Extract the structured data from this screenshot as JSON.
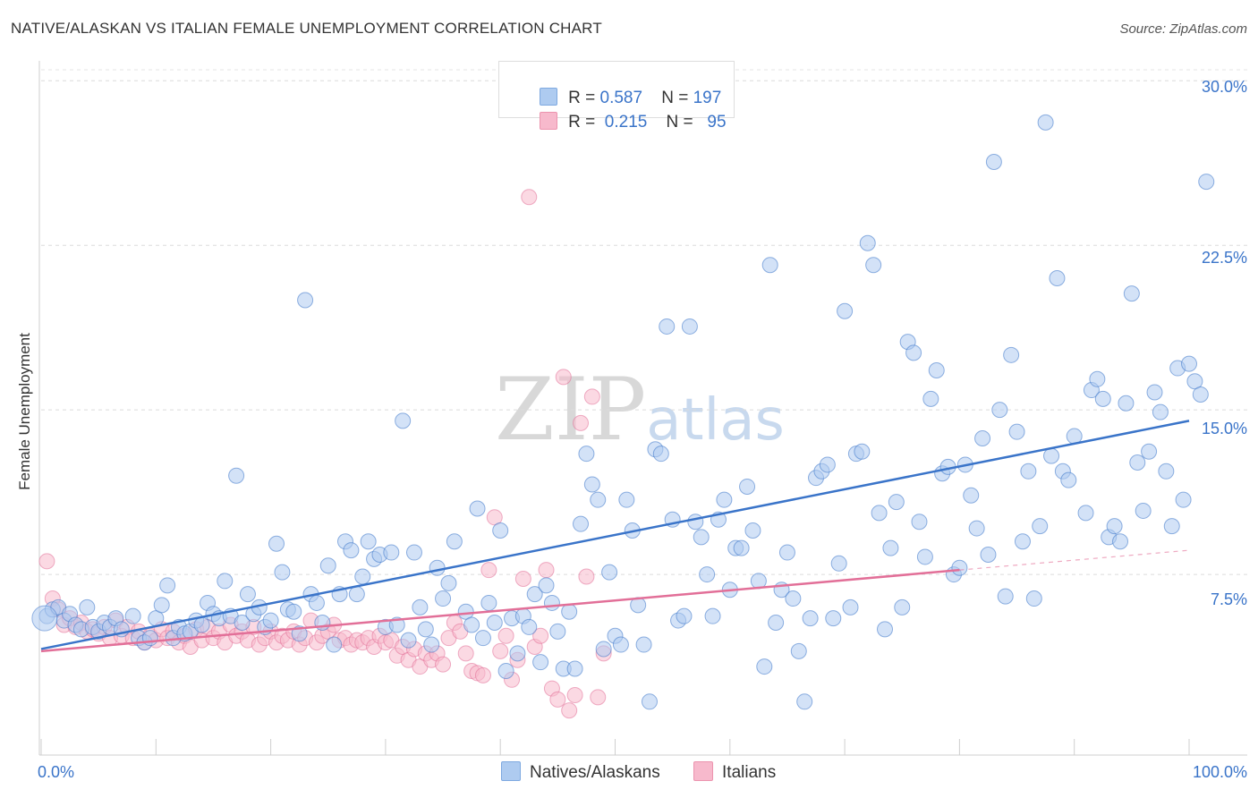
{
  "header": {
    "title": "NATIVE/ALASKAN VS ITALIAN FEMALE UNEMPLOYMENT CORRELATION CHART",
    "source": "Source: ZipAtlas.com"
  },
  "watermark": {
    "main": "ZIP",
    "sub": "atlas"
  },
  "legend_top": [
    {
      "r_label": "R =",
      "r_value": "0.587",
      "n_label": "N =",
      "n_value": "197",
      "color": "#aecbf0"
    },
    {
      "r_label": "R =",
      "r_value": "0.215",
      "n_label": "N =",
      "n_value": "95",
      "color": "#f7b9cc"
    }
  ],
  "legend_bottom": [
    {
      "label": "Natives/Alaskans",
      "color": "#aecbf0"
    },
    {
      "label": "Italians",
      "color": "#f7b9cc"
    }
  ],
  "chart_data": {
    "type": "scatter",
    "title": "NATIVE/ALASKAN VS ITALIAN FEMALE UNEMPLOYMENT CORRELATION CHART",
    "xlabel": "",
    "ylabel": "Female Unemployment",
    "xlim": [
      0,
      100
    ],
    "ylim": [
      0,
      30.5
    ],
    "x_tick_labels": [
      "0.0%",
      "100.0%"
    ],
    "y_ticks": [
      7.5,
      15.0,
      22.5,
      30.0
    ],
    "y_tick_labels": [
      "7.5%",
      "15.0%",
      "22.5%",
      "30.0%"
    ],
    "grid": true,
    "legend_placement": "top-center",
    "series": [
      {
        "name": "Natives/Alaskans",
        "color": "#3a74c9",
        "fill": "#aecbf0",
        "r": 0.587,
        "n": 197,
        "trend": {
          "x": [
            0,
            100
          ],
          "y": [
            4.1,
            14.5
          ]
        },
        "points": [
          [
            0.5,
            5.6
          ],
          [
            1,
            5.9
          ],
          [
            1.5,
            6
          ],
          [
            2,
            5.4
          ],
          [
            2.5,
            5.7
          ],
          [
            3,
            5.2
          ],
          [
            3.5,
            5
          ],
          [
            4,
            6
          ],
          [
            4.5,
            5.1
          ],
          [
            5,
            4.9
          ],
          [
            5.5,
            5.3
          ],
          [
            6,
            5.1
          ],
          [
            6.5,
            5.5
          ],
          [
            7,
            5
          ],
          [
            8,
            5.6
          ],
          [
            8.5,
            4.6
          ],
          [
            9,
            4.4
          ],
          [
            9.5,
            4.6
          ],
          [
            10,
            5.5
          ],
          [
            10.5,
            6.1
          ],
          [
            11,
            7
          ],
          [
            11.5,
            4.6
          ],
          [
            12,
            5.1
          ],
          [
            12.5,
            4.8
          ],
          [
            13,
            4.9
          ],
          [
            13.5,
            5.4
          ],
          [
            14,
            5.2
          ],
          [
            14.5,
            6.2
          ],
          [
            15,
            5.7
          ],
          [
            15.5,
            5.5
          ],
          [
            16,
            7.2
          ],
          [
            16.5,
            5.6
          ],
          [
            17,
            12
          ],
          [
            17.5,
            5.3
          ],
          [
            18,
            6.6
          ],
          [
            18.5,
            5.7
          ],
          [
            19,
            6
          ],
          [
            19.5,
            5.1
          ],
          [
            20,
            5.4
          ],
          [
            20.5,
            8.9
          ],
          [
            21,
            7.6
          ],
          [
            21.5,
            5.9
          ],
          [
            22,
            5.8
          ],
          [
            22.5,
            4.8
          ],
          [
            23,
            20
          ],
          [
            23.5,
            6.6
          ],
          [
            24,
            6.2
          ],
          [
            24.5,
            5.3
          ],
          [
            25,
            7.9
          ],
          [
            25.5,
            4.3
          ],
          [
            26,
            6.6
          ],
          [
            26.5,
            9
          ],
          [
            27,
            8.6
          ],
          [
            27.5,
            6.6
          ],
          [
            28,
            7.4
          ],
          [
            28.5,
            9
          ],
          [
            29,
            8.2
          ],
          [
            29.5,
            8.4
          ],
          [
            30,
            5.1
          ],
          [
            30.5,
            8.5
          ],
          [
            31,
            5.2
          ],
          [
            31.5,
            14.5
          ],
          [
            32,
            4.5
          ],
          [
            32.5,
            8.5
          ],
          [
            33,
            6
          ],
          [
            33.5,
            5
          ],
          [
            34,
            4.3
          ],
          [
            34.5,
            7.8
          ],
          [
            35,
            6.4
          ],
          [
            35.5,
            7.1
          ],
          [
            36,
            9
          ],
          [
            37,
            5.8
          ],
          [
            37.5,
            5.2
          ],
          [
            38,
            10.5
          ],
          [
            38.5,
            4.6
          ],
          [
            39,
            6.2
          ],
          [
            39.5,
            5.3
          ],
          [
            40,
            9.5
          ],
          [
            40.5,
            3.1
          ],
          [
            41,
            5.5
          ],
          [
            41.5,
            3.9
          ],
          [
            42,
            5.6
          ],
          [
            42.5,
            5.1
          ],
          [
            43,
            6.6
          ],
          [
            43.5,
            3.5
          ],
          [
            44,
            7
          ],
          [
            44.5,
            6.2
          ],
          [
            45,
            4.9
          ],
          [
            45.5,
            3.2
          ],
          [
            46,
            5.8
          ],
          [
            46.5,
            3.2
          ],
          [
            47,
            9.8
          ],
          [
            47.5,
            13
          ],
          [
            48,
            11.6
          ],
          [
            48.5,
            10.9
          ],
          [
            49,
            4.1
          ],
          [
            49.5,
            7.6
          ],
          [
            50,
            4.7
          ],
          [
            50.5,
            4.3
          ],
          [
            51,
            10.9
          ],
          [
            51.5,
            9.5
          ],
          [
            52,
            6.1
          ],
          [
            52.5,
            4.3
          ],
          [
            53,
            1.7
          ],
          [
            53.5,
            13.2
          ],
          [
            54,
            13
          ],
          [
            54.5,
            18.8
          ],
          [
            55,
            10
          ],
          [
            55.5,
            5.4
          ],
          [
            56,
            5.6
          ],
          [
            56.5,
            18.8
          ],
          [
            57,
            9.9
          ],
          [
            57.5,
            9.2
          ],
          [
            58,
            7.5
          ],
          [
            58.5,
            5.6
          ],
          [
            59,
            10
          ],
          [
            60,
            6.8
          ],
          [
            60.5,
            8.7
          ],
          [
            61,
            8.7
          ],
          [
            61.5,
            11.5
          ],
          [
            62,
            9.5
          ],
          [
            62.5,
            7.2
          ],
          [
            63,
            3.3
          ],
          [
            63.5,
            21.6
          ],
          [
            64,
            5.3
          ],
          [
            64.5,
            6.8
          ],
          [
            65,
            8.5
          ],
          [
            65.5,
            6.4
          ],
          [
            66,
            4
          ],
          [
            66.5,
            1.7
          ],
          [
            67,
            5.5
          ],
          [
            67.5,
            11.9
          ],
          [
            68,
            12.2
          ],
          [
            68.5,
            12.5
          ],
          [
            69,
            5.5
          ],
          [
            69.5,
            8
          ],
          [
            70,
            19.5
          ],
          [
            70.5,
            6
          ],
          [
            71,
            13
          ],
          [
            71.5,
            13.1
          ],
          [
            72,
            22.6
          ],
          [
            72.5,
            21.6
          ],
          [
            73,
            10.3
          ],
          [
            73.5,
            5
          ],
          [
            74,
            8.7
          ],
          [
            74.5,
            10.8
          ],
          [
            75,
            6
          ],
          [
            75.5,
            18.1
          ],
          [
            76,
            17.6
          ],
          [
            76.5,
            9.9
          ],
          [
            77,
            8.3
          ],
          [
            77.5,
            15.5
          ],
          [
            78,
            16.8
          ],
          [
            78.5,
            12.1
          ],
          [
            79,
            12.4
          ],
          [
            79.5,
            7.5
          ],
          [
            80,
            7.8
          ],
          [
            80.5,
            12.5
          ],
          [
            81,
            11.1
          ],
          [
            81.5,
            9.6
          ],
          [
            82,
            13.7
          ],
          [
            82.5,
            8.4
          ],
          [
            83,
            26.3
          ],
          [
            83.5,
            15
          ],
          [
            84,
            6.5
          ],
          [
            84.5,
            17.5
          ],
          [
            85,
            14
          ],
          [
            85.5,
            9
          ],
          [
            86,
            12.2
          ],
          [
            86.5,
            6.4
          ],
          [
            87,
            9.7
          ],
          [
            87.5,
            28.1
          ],
          [
            88,
            12.9
          ],
          [
            88.5,
            21
          ],
          [
            89,
            12.2
          ],
          [
            89.5,
            11.8
          ],
          [
            90,
            13.8
          ],
          [
            91,
            10.3
          ],
          [
            91.5,
            15.9
          ],
          [
            92,
            16.4
          ],
          [
            92.5,
            15.5
          ],
          [
            93,
            9.2
          ],
          [
            93.5,
            9.7
          ],
          [
            94,
            9
          ],
          [
            94.5,
            15.3
          ],
          [
            95,
            20.3
          ],
          [
            95.5,
            12.6
          ],
          [
            96,
            10.4
          ],
          [
            96.5,
            13.1
          ],
          [
            97,
            15.8
          ],
          [
            97.5,
            14.9
          ],
          [
            98,
            12.2
          ],
          [
            98.5,
            9.7
          ],
          [
            99,
            16.9
          ],
          [
            99.5,
            10.9
          ],
          [
            100,
            17.1
          ],
          [
            100.5,
            16.3
          ],
          [
            101,
            15.7
          ],
          [
            101.5,
            25.4
          ],
          [
            59.5,
            10.9
          ]
        ]
      },
      {
        "name": "Italians",
        "color": "#e26f98",
        "fill": "#f7b9cc",
        "r": 0.215,
        "n": 95,
        "trend": {
          "x": [
            0,
            80
          ],
          "y": [
            4.0,
            7.7
          ]
        },
        "trend_dashed_extension": {
          "x": [
            80,
            100
          ],
          "y": [
            7.7,
            8.6
          ]
        },
        "points": [
          [
            0.5,
            8.1
          ],
          [
            1,
            6.4
          ],
          [
            1.5,
            5.9
          ],
          [
            2,
            5.2
          ],
          [
            2.5,
            5.5
          ],
          [
            3,
            5.1
          ],
          [
            3.5,
            5.3
          ],
          [
            4,
            4.9
          ],
          [
            4.5,
            5
          ],
          [
            5,
            4.8
          ],
          [
            5.5,
            5.1
          ],
          [
            6,
            4.6
          ],
          [
            6.5,
            5.4
          ],
          [
            7,
            4.7
          ],
          [
            7.5,
            5.1
          ],
          [
            8,
            4.6
          ],
          [
            8.5,
            4.9
          ],
          [
            9,
            4.4
          ],
          [
            9.5,
            4.7
          ],
          [
            10,
            4.5
          ],
          [
            10.5,
            5
          ],
          [
            11,
            4.6
          ],
          [
            11.5,
            4.9
          ],
          [
            12,
            4.4
          ],
          [
            12.5,
            4.7
          ],
          [
            13,
            4.2
          ],
          [
            13.5,
            5
          ],
          [
            14,
            4.5
          ],
          [
            14.5,
            5.1
          ],
          [
            15,
            4.6
          ],
          [
            15.5,
            4.9
          ],
          [
            16,
            4.4
          ],
          [
            16.5,
            5.2
          ],
          [
            17,
            4.7
          ],
          [
            17.5,
            4.9
          ],
          [
            18,
            4.5
          ],
          [
            18.5,
            5.1
          ],
          [
            19,
            4.3
          ],
          [
            19.5,
            4.6
          ],
          [
            20,
            4.9
          ],
          [
            20.5,
            4.4
          ],
          [
            21,
            4.7
          ],
          [
            21.5,
            4.5
          ],
          [
            22,
            4.9
          ],
          [
            22.5,
            4.3
          ],
          [
            23,
            4.6
          ],
          [
            23.5,
            5.4
          ],
          [
            24,
            4.4
          ],
          [
            24.5,
            4.7
          ],
          [
            25,
            4.9
          ],
          [
            25.5,
            5.2
          ],
          [
            26,
            4.5
          ],
          [
            26.5,
            4.6
          ],
          [
            27,
            4.3
          ],
          [
            27.5,
            4.5
          ],
          [
            28,
            4.4
          ],
          [
            28.5,
            4.6
          ],
          [
            29,
            4.2
          ],
          [
            29.5,
            4.7
          ],
          [
            30,
            4.4
          ],
          [
            30.5,
            4.5
          ],
          [
            31,
            3.8
          ],
          [
            31.5,
            4.2
          ],
          [
            32,
            3.6
          ],
          [
            32.5,
            4.1
          ],
          [
            33,
            3.3
          ],
          [
            33.5,
            3.9
          ],
          [
            34,
            3.6
          ],
          [
            34.5,
            3.9
          ],
          [
            35,
            3.4
          ],
          [
            35.5,
            4.6
          ],
          [
            36,
            5.3
          ],
          [
            36.5,
            4.9
          ],
          [
            37,
            3.9
          ],
          [
            37.5,
            3.1
          ],
          [
            38,
            3
          ],
          [
            38.5,
            2.9
          ],
          [
            39,
            7.7
          ],
          [
            39.5,
            10.1
          ],
          [
            40,
            4
          ],
          [
            40.5,
            4.7
          ],
          [
            41,
            2.7
          ],
          [
            41.5,
            3.6
          ],
          [
            42,
            7.3
          ],
          [
            42.5,
            24.7
          ],
          [
            43,
            4.2
          ],
          [
            43.5,
            4.7
          ],
          [
            44,
            7.7
          ],
          [
            44.5,
            2.3
          ],
          [
            45,
            1.8
          ],
          [
            45.5,
            16.5
          ],
          [
            46,
            1.3
          ],
          [
            46.5,
            2
          ],
          [
            47,
            14.4
          ],
          [
            47.5,
            7.4
          ],
          [
            48,
            15.6
          ],
          [
            48.5,
            1.9
          ],
          [
            49,
            3.9
          ]
        ]
      }
    ]
  }
}
